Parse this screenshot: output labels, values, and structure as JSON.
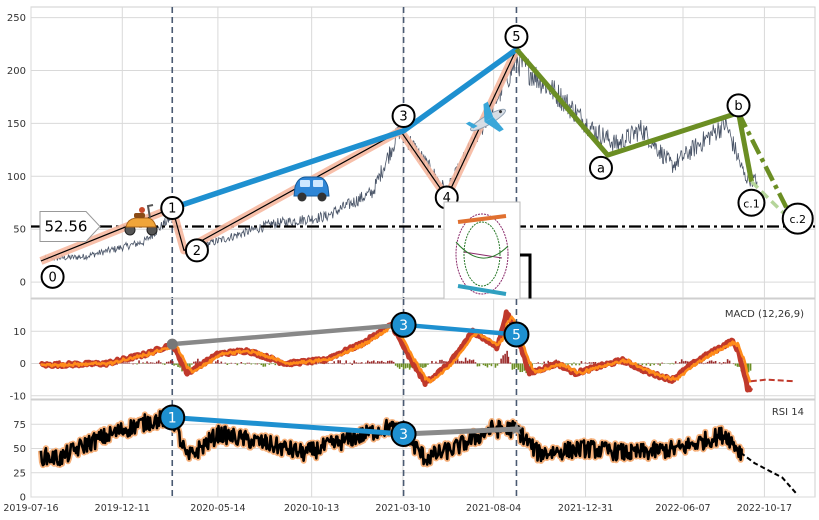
{
  "chart_data": [
    {
      "panel": "price",
      "type": "line",
      "title": "",
      "ylim": [
        -15,
        260
      ],
      "yticks": [
        0,
        50,
        100,
        150,
        200,
        250
      ],
      "xlim": [
        "2019-07-16",
        "2023-01-07"
      ],
      "xticks": [
        "2019-07-16",
        "2019-12-11",
        "2020-05-14",
        "2020-10-13",
        "2021-03-10",
        "2021-08-04",
        "2021-12-31",
        "2022-06-07",
        "2022-10-17"
      ],
      "price_anchors": [
        {
          "date": "2019-08-05",
          "y": 22
        },
        {
          "date": "2019-10-10",
          "y": 24
        },
        {
          "date": "2020-01-15",
          "y": 38
        },
        {
          "date": "2020-03-01",
          "y": 62
        },
        {
          "date": "2020-03-22",
          "y": 30
        },
        {
          "date": "2020-05-20",
          "y": 40
        },
        {
          "date": "2020-08-10",
          "y": 55
        },
        {
          "date": "2020-11-05",
          "y": 62
        },
        {
          "date": "2021-01-20",
          "y": 85
        },
        {
          "date": "2021-03-05",
          "y": 145
        },
        {
          "date": "2021-05-20",
          "y": 85
        },
        {
          "date": "2021-08-01",
          "y": 165
        },
        {
          "date": "2021-09-10",
          "y": 210
        },
        {
          "date": "2021-11-20",
          "y": 175
        },
        {
          "date": "2022-01-10",
          "y": 145
        },
        {
          "date": "2022-02-20",
          "y": 130
        },
        {
          "date": "2022-04-01",
          "y": 145
        },
        {
          "date": "2022-05-20",
          "y": 110
        },
        {
          "date": "2022-08-15",
          "y": 150
        },
        {
          "date": "2022-09-15",
          "y": 100
        },
        {
          "date": "2022-10-05",
          "y": 95
        }
      ],
      "threshold": {
        "value": 52.56,
        "label": "52.56"
      },
      "vlines": [
        "2020-03-01",
        "2021-03-11",
        "2021-09-10"
      ],
      "wave_points": [
        {
          "label": "0",
          "date": "2019-08-01",
          "y": 20
        },
        {
          "label": "1",
          "date": "2020-03-01",
          "y": 70
        },
        {
          "label": "2",
          "date": "2020-03-20",
          "y": 30
        },
        {
          "label": "3",
          "date": "2021-03-06",
          "y": 143
        },
        {
          "label": "4",
          "date": "2021-05-20",
          "y": 80
        },
        {
          "label": "5",
          "date": "2021-09-10",
          "y": 220
        },
        {
          "label": "a",
          "date": "2022-02-05",
          "y": 120
        },
        {
          "label": "b",
          "date": "2022-09-05",
          "y": 160
        },
        {
          "label": "c.1",
          "date": "2022-09-26",
          "y": 95
        },
        {
          "label": "c.2",
          "date": "2022-12-05",
          "y": 55
        }
      ],
      "wave_markers": [
        {
          "label": "0",
          "date": "2019-08-20",
          "y": 5,
          "r": 11
        },
        {
          "label": "1",
          "date": "2020-03-01",
          "y": 70,
          "r": 11
        },
        {
          "label": "2",
          "date": "2020-04-10",
          "y": 30,
          "r": 11
        },
        {
          "label": "3",
          "date": "2021-03-11",
          "y": 157,
          "r": 11
        },
        {
          "label": "4",
          "date": "2021-05-20",
          "y": 80,
          "r": 11
        },
        {
          "label": "5",
          "date": "2021-09-10",
          "y": 232,
          "r": 11
        },
        {
          "label": "a",
          "date": "2022-01-25",
          "y": 108,
          "r": 11
        },
        {
          "label": "b",
          "date": "2022-09-05",
          "y": 167,
          "r": 11
        },
        {
          "label": "c.1",
          "date": "2022-09-26",
          "y": 75,
          "r": 13
        },
        {
          "label": "c.2",
          "date": "2022-12-10",
          "y": 60,
          "r": 15
        }
      ],
      "trend_blue": [
        {
          "date": "2020-03-01",
          "y": 70
        },
        {
          "date": "2021-03-11",
          "y": 143
        },
        {
          "date": "2021-09-10",
          "y": 220
        }
      ],
      "correction_green": [
        {
          "date": "2021-09-10",
          "y": 220
        },
        {
          "date": "2022-02-05",
          "y": 120
        },
        {
          "date": "2022-09-05",
          "y": 160
        },
        {
          "date": "2022-09-26",
          "y": 95
        }
      ],
      "projection": [
        {
          "date": "2022-09-05",
          "y": 160
        },
        {
          "date": "2022-12-05",
          "y": 55
        }
      ],
      "icons": [
        "scooter-icon",
        "car-icon",
        "airplane-icon",
        "cycle-diagram-icon"
      ]
    },
    {
      "panel": "macd",
      "type": "line",
      "label": "MACD (12,26,9)",
      "ylim": [
        -11,
        20
      ],
      "yticks": [
        -10,
        0,
        10
      ],
      "anchors": [
        {
          "date": "2019-08-01",
          "y": -0.5
        },
        {
          "date": "2019-11-15",
          "y": 0
        },
        {
          "date": "2020-01-20",
          "y": 3
        },
        {
          "date": "2020-03-01",
          "y": 6
        },
        {
          "date": "2020-03-25",
          "y": -3
        },
        {
          "date": "2020-05-15",
          "y": 3
        },
        {
          "date": "2020-07-01",
          "y": 4
        },
        {
          "date": "2020-09-01",
          "y": 0
        },
        {
          "date": "2020-11-01",
          "y": 1
        },
        {
          "date": "2021-01-01",
          "y": 6
        },
        {
          "date": "2021-02-20",
          "y": 12
        },
        {
          "date": "2021-03-20",
          "y": 2
        },
        {
          "date": "2021-04-15",
          "y": -6
        },
        {
          "date": "2021-05-25",
          "y": 0
        },
        {
          "date": "2021-07-01",
          "y": 10
        },
        {
          "date": "2021-08-10",
          "y": 5
        },
        {
          "date": "2021-08-25",
          "y": 16
        },
        {
          "date": "2021-09-10",
          "y": 9
        },
        {
          "date": "2021-10-01",
          "y": -3
        },
        {
          "date": "2021-11-15",
          "y": 0
        },
        {
          "date": "2021-12-15",
          "y": -3
        },
        {
          "date": "2022-01-20",
          "y": -1
        },
        {
          "date": "2022-03-01",
          "y": 1
        },
        {
          "date": "2022-04-15",
          "y": -3
        },
        {
          "date": "2022-05-20",
          "y": -5
        },
        {
          "date": "2022-07-01",
          "y": 1
        },
        {
          "date": "2022-08-25",
          "y": 7
        },
        {
          "date": "2022-09-05",
          "y": 4
        },
        {
          "date": "2022-09-20",
          "y": -8
        },
        {
          "date": "2022-10-05",
          "y": -6
        },
        {
          "date": "2022-11-01",
          "y": -5
        },
        {
          "date": "2022-11-25",
          "y": -5
        }
      ],
      "divergence_gray": [
        {
          "date": "2020-03-01",
          "y": 6
        },
        {
          "date": "2021-03-11",
          "y": 12
        }
      ],
      "divergence_blue": [
        {
          "date": "2021-03-11",
          "y": 12
        },
        {
          "date": "2021-09-10",
          "y": 9
        }
      ],
      "markers": [
        {
          "label": "3",
          "date": "2021-03-11",
          "y": 12
        },
        {
          "label": "5",
          "date": "2021-09-10",
          "y": 9
        }
      ]
    },
    {
      "panel": "rsi",
      "type": "line",
      "label": "RSI 14",
      "ylim": [
        0,
        100
      ],
      "yticks": [
        0,
        25,
        50,
        75
      ],
      "anchors": [
        {
          "date": "2019-08-01",
          "y": 42
        },
        {
          "date": "2019-09-01",
          "y": 40
        },
        {
          "date": "2019-10-15",
          "y": 55
        },
        {
          "date": "2019-12-15",
          "y": 70
        },
        {
          "date": "2020-01-25",
          "y": 78
        },
        {
          "date": "2020-03-01",
          "y": 82
        },
        {
          "date": "2020-03-25",
          "y": 40
        },
        {
          "date": "2020-05-15",
          "y": 65
        },
        {
          "date": "2020-08-01",
          "y": 55
        },
        {
          "date": "2020-10-01",
          "y": 45
        },
        {
          "date": "2020-12-15",
          "y": 60
        },
        {
          "date": "2021-02-15",
          "y": 72
        },
        {
          "date": "2021-03-11",
          "y": 65
        },
        {
          "date": "2021-04-15",
          "y": 40
        },
        {
          "date": "2021-06-01",
          "y": 50
        },
        {
          "date": "2021-08-01",
          "y": 70
        },
        {
          "date": "2021-09-10",
          "y": 70
        },
        {
          "date": "2021-10-15",
          "y": 45
        },
        {
          "date": "2022-01-01",
          "y": 50
        },
        {
          "date": "2022-03-15",
          "y": 45
        },
        {
          "date": "2022-06-01",
          "y": 50
        },
        {
          "date": "2022-08-15",
          "y": 65
        },
        {
          "date": "2022-09-10",
          "y": 45
        },
        {
          "date": "2022-10-01",
          "y": 35
        },
        {
          "date": "2022-11-15",
          "y": 20
        },
        {
          "date": "2022-12-10",
          "y": 2
        }
      ],
      "divergence_blue": [
        {
          "date": "2020-03-01",
          "y": 82
        },
        {
          "date": "2021-03-11",
          "y": 65
        }
      ],
      "divergence_gray": [
        {
          "date": "2021-03-11",
          "y": 65
        },
        {
          "date": "2021-09-10",
          "y": 70
        }
      ],
      "markers": [
        {
          "label": "1",
          "date": "2020-03-01",
          "y": 82
        },
        {
          "label": "3",
          "date": "2021-03-11",
          "y": 65
        }
      ]
    }
  ],
  "colors": {
    "price": "#4a5568",
    "wave_highlight": "#f6b8a0",
    "blue_trend": "#1e90d0",
    "green": "#6b8e23",
    "projection_light": "#b5d59a",
    "macd_red": "#c0392b",
    "macd_orange": "#ff8c1a",
    "hist_red": "#9b2a2a",
    "hist_green": "#6b8e23",
    "rsi_line": "#000000",
    "rsi_glow": "#f6b07a",
    "vline": "#4a5a72",
    "grid": "#d9d9d9"
  }
}
